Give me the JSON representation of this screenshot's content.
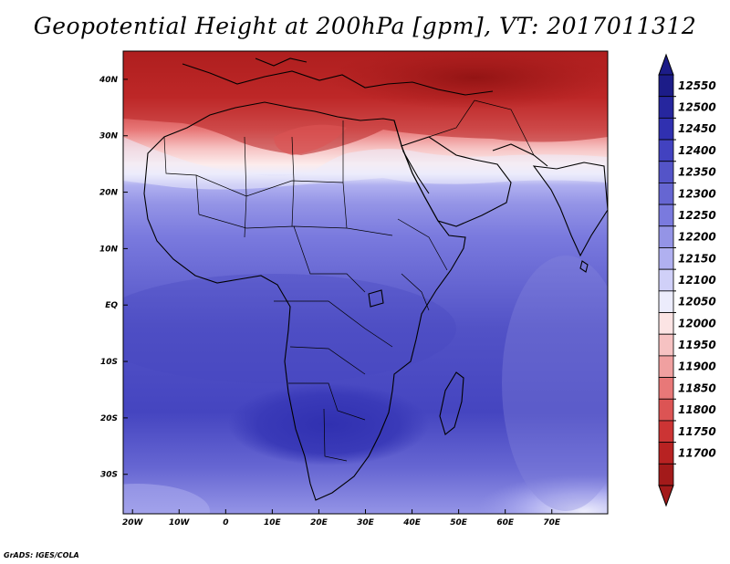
{
  "title": "Geopotential Height at 200hPa [gpm], VT: 2017011312",
  "footer": "GrADS: IGES/COLA",
  "map": {
    "projection": "latlon",
    "lon_range": [
      -22,
      82
    ],
    "lat_range": [
      -37,
      45
    ],
    "lon_ticks": [
      "20W",
      "10W",
      "0",
      "10E",
      "20E",
      "30E",
      "40E",
      "50E",
      "60E",
      "70E"
    ],
    "lat_ticks": [
      "40N",
      "30N",
      "20N",
      "10N",
      "EQ",
      "10S",
      "20S",
      "30S"
    ],
    "field": "geopotential height",
    "level": "200hPa",
    "units": "gpm",
    "valid_time": "2017011312"
  },
  "colorbar": {
    "labels": [
      "12550",
      "12500",
      "12450",
      "12400",
      "12350",
      "12300",
      "12250",
      "12200",
      "12150",
      "12100",
      "12050",
      "12000",
      "11950",
      "11900",
      "11850",
      "11800",
      "11750",
      "11700"
    ],
    "colors_top_to_bottom": [
      "#1c1c88",
      "#26269e",
      "#3030b0",
      "#4242c0",
      "#5454c8",
      "#6666d2",
      "#7a7ade",
      "#9494e6",
      "#b0b0f0",
      "#d0d0f8",
      "#ececfc",
      "#fce4e4",
      "#f6c2c2",
      "#f0a0a0",
      "#e87878",
      "#dc5454",
      "#cc3434",
      "#b82222",
      "#a31a1a"
    ],
    "extend": "both"
  }
}
